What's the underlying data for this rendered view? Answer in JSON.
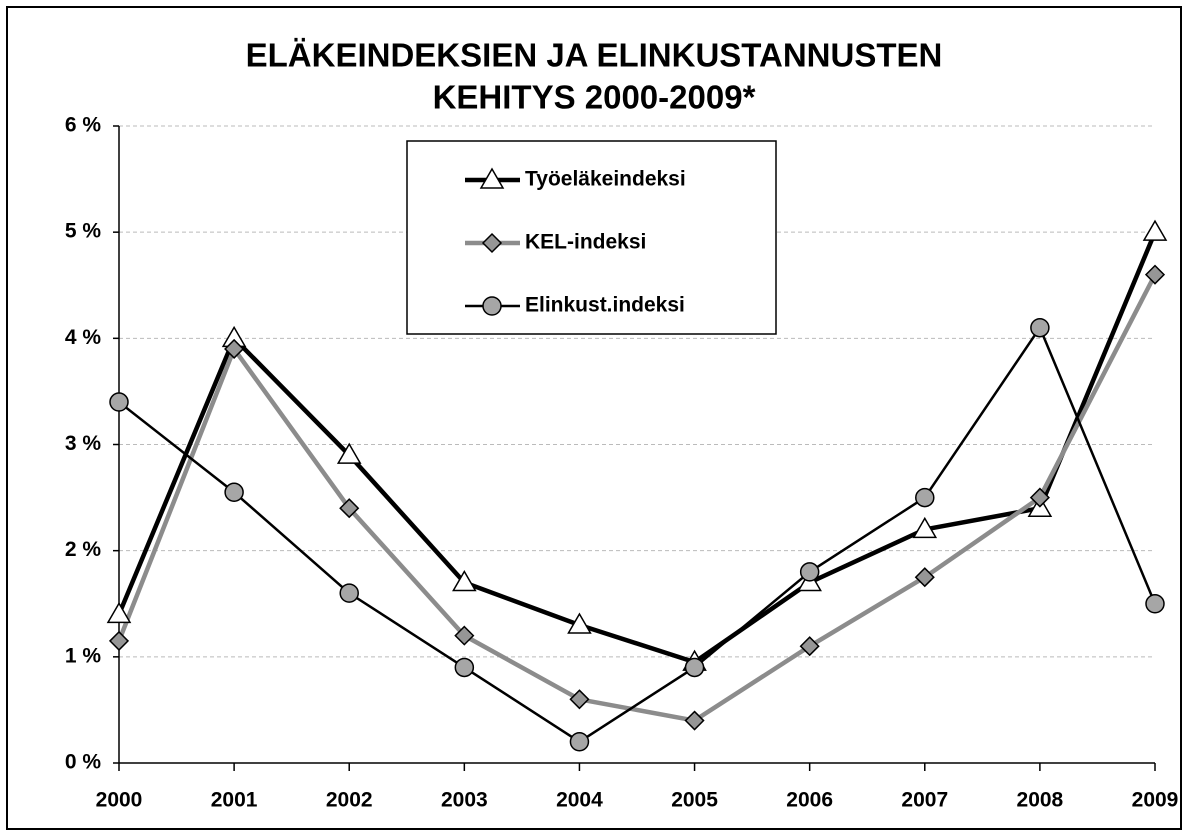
{
  "chart_data": {
    "type": "line",
    "title": "ELÄKEINDEKSIEN JA ELINKUSTANNUSTEN",
    "subtitle": "KEHITYS 2000-2009*",
    "categories": [
      "2000",
      "2001",
      "2002",
      "2003",
      "2004",
      "2005",
      "2006",
      "2007",
      "2008",
      "2009"
    ],
    "series": [
      {
        "name": "Työeläkeindeksi",
        "color": "#000000",
        "marker": "triangle",
        "marker_color": "#ffffff",
        "line_width": 4.5,
        "values": [
          1.4,
          4.0,
          2.9,
          1.7,
          1.3,
          0.95,
          1.7,
          2.2,
          2.4,
          5.0
        ]
      },
      {
        "name": "KEL-indeksi",
        "color": "#8c8c8c",
        "marker": "diamond",
        "marker_color": "#969696",
        "line_width": 4.5,
        "values": [
          1.15,
          3.9,
          2.4,
          1.2,
          0.6,
          0.4,
          1.1,
          1.75,
          2.5,
          4.6
        ]
      },
      {
        "name": "Elinkust.indeksi",
        "color": "#000000",
        "marker": "circle",
        "marker_color": "#a6a6a6",
        "line_width": 2.5,
        "values": [
          3.4,
          2.55,
          1.6,
          0.9,
          0.2,
          0.9,
          1.8,
          2.5,
          4.1,
          1.5
        ]
      }
    ],
    "ylim": [
      0,
      6
    ],
    "yticks": [
      {
        "value": 0,
        "label": "0 %"
      },
      {
        "value": 1,
        "label": "1 %"
      },
      {
        "value": 2,
        "label": "2 %"
      },
      {
        "value": 3,
        "label": "3 %"
      },
      {
        "value": 4,
        "label": "4 %"
      },
      {
        "value": 5,
        "label": "5 %"
      },
      {
        "value": 6,
        "label": "6 %"
      }
    ],
    "grid": true,
    "legend": "top-center"
  }
}
